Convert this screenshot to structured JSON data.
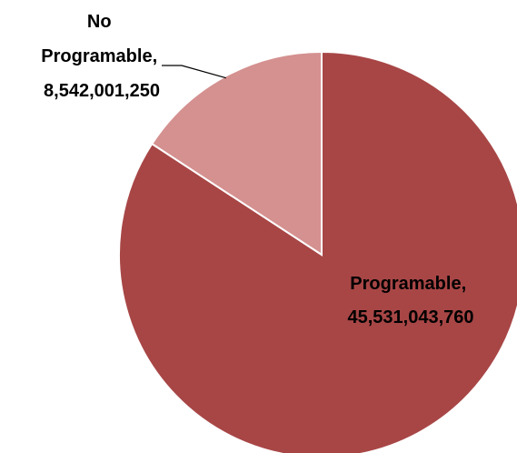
{
  "chart_data": {
    "type": "pie",
    "title": "",
    "categories": [
      "Programable",
      "No Programable"
    ],
    "values": [
      45531043760,
      8542001250
    ],
    "value_labels": [
      "45,531,043,760",
      "8,542,001,250"
    ],
    "colors": [
      "#A84646",
      "#D49190"
    ],
    "slice_edge_color": "#ffffff",
    "start_angle_deg": 0,
    "direction": "clockwise",
    "legend": "none",
    "labels": [
      {
        "name_lines": [
          "Programable,"
        ],
        "value": "45,531,043,760"
      },
      {
        "name_lines": [
          "No",
          "Programable,"
        ],
        "value": "8,542,001,250"
      }
    ]
  }
}
